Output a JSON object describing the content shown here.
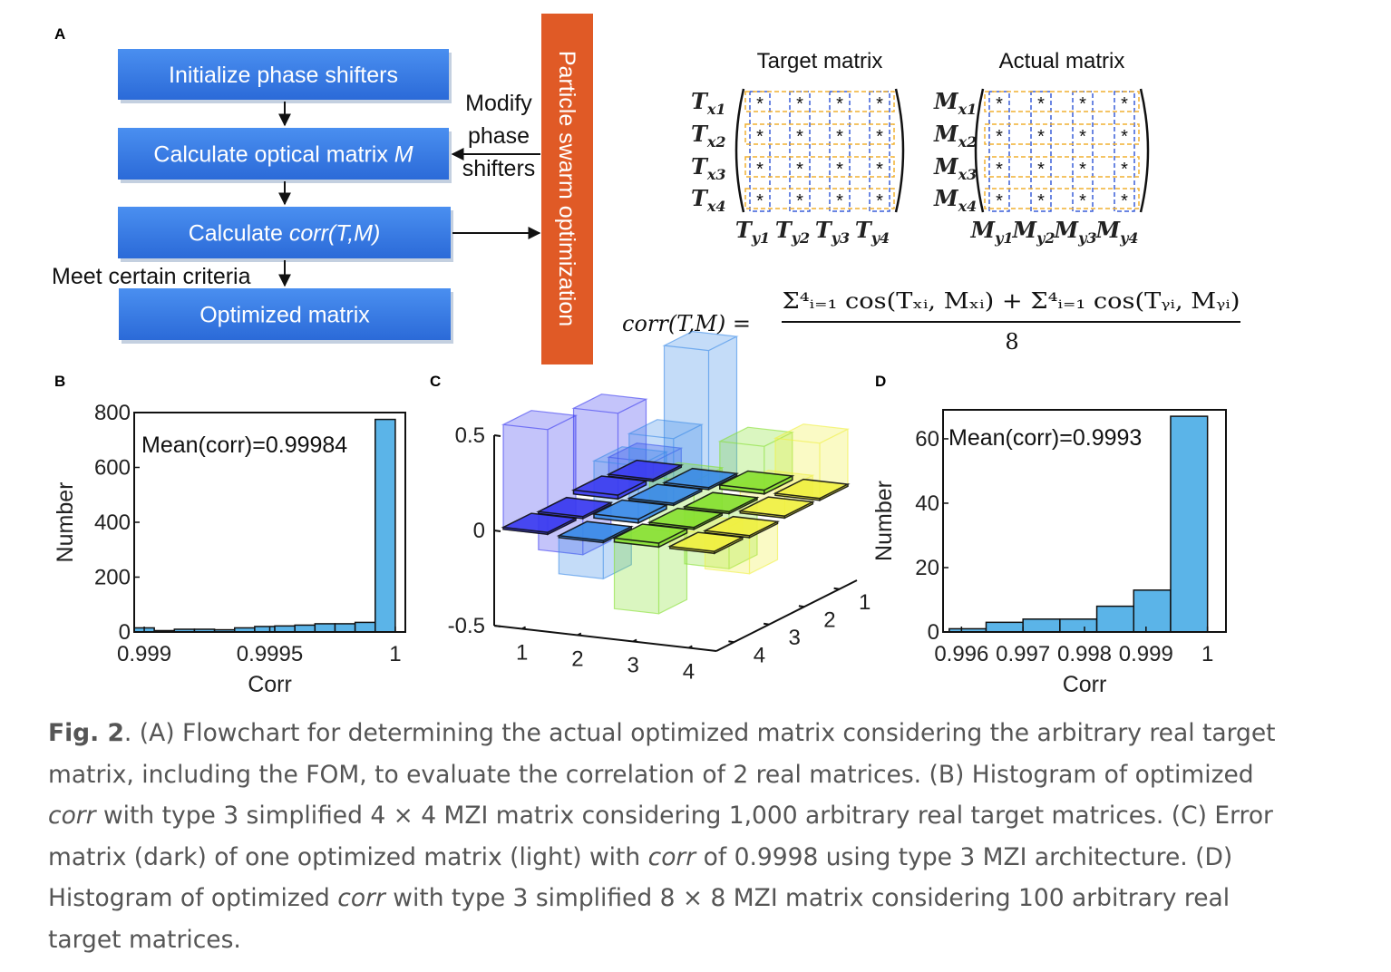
{
  "panel_labels": [
    "A",
    "B",
    "C",
    "D"
  ],
  "flowchart": {
    "steps": [
      [
        "Initialize phase shifters"
      ],
      [
        "Calculate optical matrix ",
        "M"
      ],
      [
        "Calculate ",
        "corr(T,M)"
      ],
      [
        "Optimized matrix"
      ]
    ],
    "criteria": "Meet certain criteria",
    "feedback": [
      "Modify",
      "phase",
      "shifters"
    ],
    "optimizer": "Particle swarm optimization"
  },
  "matrices": [
    {
      "title": "Target matrix",
      "symbol": "T",
      "rows": [
        "x1",
        "x2",
        "x3",
        "x4"
      ],
      "cols": [
        "y1",
        "y2",
        "y3",
        "y4"
      ],
      "entry": "*"
    },
    {
      "title": "Actual matrix",
      "symbol": "M",
      "rows": [
        "x1",
        "x2",
        "x3",
        "x4"
      ],
      "cols": [
        "y1",
        "y2",
        "y3",
        "y4"
      ],
      "entry": "*"
    }
  ],
  "formula": {
    "lhs": "corr(T,M) =",
    "numerator": "Σ⁴ᵢ₌₁ cos(Tₓᵢ, Mₓᵢ) + Σ⁴ᵢ₌₁ cos(Tᵧᵢ, Mᵧᵢ)",
    "denominator": "8"
  },
  "chart_data": [
    {
      "type": "histogram",
      "xlabel": "Corr",
      "ylabel": "Number",
      "annotation": "Mean(corr)=0.99984",
      "color": "#5bb4e8",
      "bins": [
        0.99896,
        0.99904,
        0.99912,
        0.9992,
        0.99928,
        0.99936,
        0.99944,
        0.99952,
        0.9996,
        0.99968,
        0.99976,
        0.99984,
        0.99992,
        1.0
      ],
      "values": [
        15,
        5,
        10,
        10,
        8,
        15,
        20,
        22,
        25,
        30,
        30,
        35,
        775
      ],
      "xlim": [
        0.99896,
        1.00004
      ],
      "xticks": [
        0.999,
        0.9995,
        1
      ],
      "ylim": [
        0,
        800
      ],
      "yticks": [
        0,
        200,
        400,
        600,
        800
      ]
    },
    {
      "type": "bar3d",
      "x": [
        1,
        2,
        3,
        4
      ],
      "y": [
        1,
        2,
        3,
        4
      ],
      "zlim": [
        -0.5,
        0.5
      ],
      "zticks": [
        -0.5,
        0,
        0.5
      ],
      "colors": [
        "#3a3af0",
        "#3a8ae8",
        "#86e030",
        "#f0f040"
      ],
      "series": [
        {
          "opacity": 0.3,
          "values": [
            [
              0.1,
              0.72,
              0.25,
              0.3
            ],
            [
              0.45,
              0.35,
              -0.3,
              0.15
            ],
            [
              -0.2,
              0.3,
              0.25,
              -0.2
            ],
            [
              0.55,
              -0.2,
              -0.35,
              0.1
            ]
          ]
        },
        {
          "opacity": 0.9,
          "values": [
            [
              0.01,
              -0.01,
              0.02,
              0.01
            ],
            [
              0.02,
              0.01,
              -0.01,
              0.01
            ],
            [
              -0.01,
              0.02,
              0.01,
              -0.01
            ],
            [
              0.01,
              -0.01,
              0.02,
              0.01
            ]
          ]
        }
      ]
    },
    {
      "type": "histogram",
      "xlabel": "Corr",
      "ylabel": "Number",
      "annotation": "Mean(corr)=0.9993",
      "color": "#5bb4e8",
      "bins": [
        0.9958,
        0.9964,
        0.997,
        0.9976,
        0.9982,
        0.9988,
        0.9994,
        1.0
      ],
      "values": [
        1,
        3,
        4,
        4,
        8,
        13,
        67
      ],
      "xlim": [
        0.9957,
        1.0003
      ],
      "xticks": [
        0.996,
        0.997,
        0.998,
        0.999,
        1
      ],
      "ylim": [
        0,
        69
      ],
      "yticks": [
        0,
        20,
        40,
        60
      ]
    }
  ],
  "caption": {
    "label": "Fig. 2",
    "segments": [
      ". (A) Flowchart for determining the actual optimized matrix considering the arbitrary real target matrix, including the FOM, to evaluate the correlation of 2 real matrices. (B) Histogram of optimized ",
      "corr",
      " with type 3 simplified 4 × 4 MZI matrix considering 1,000 arbitrary real target matrices. (C) Error matrix (dark) of one optimized matrix (light) with ",
      "corr",
      " of 0.9998 using type 3 MZI architecture. (D) Histogram of optimized ",
      "corr",
      " with type 3 simplified 8 × 8 MZI matrix considering 100 arbitrary real target matrices."
    ]
  }
}
